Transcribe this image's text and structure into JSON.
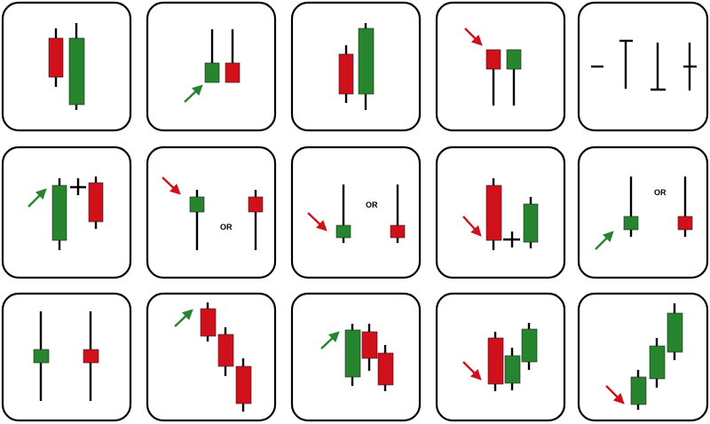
{
  "colors": {
    "bearish": "#d0101b",
    "bullish": "#27842f",
    "arrow_green": "#27842f",
    "arrow_red": "#d0101b",
    "frame": "#000000",
    "background": "#ffffff"
  },
  "labels": {
    "or": "OR"
  },
  "panels": [
    {
      "id": 1,
      "pattern": "engulfing"
    },
    {
      "id": 2,
      "pattern": "gap-candles-with-up-arrow"
    },
    {
      "id": 3,
      "pattern": "two-bars-rising"
    },
    {
      "id": 4,
      "pattern": "gap-candles-with-down-arrow"
    },
    {
      "id": 5,
      "pattern": "doji-types"
    },
    {
      "id": 6,
      "pattern": "bullish-then-doji-then-bearish"
    },
    {
      "id": 7,
      "pattern": "hanging-man-or-variant"
    },
    {
      "id": 8,
      "pattern": "hammer-or-variant"
    },
    {
      "id": 9,
      "pattern": "bearish-doji-bullish"
    },
    {
      "id": 10,
      "pattern": "shooting-star-or-variant"
    },
    {
      "id": 11,
      "pattern": "spinning-tops"
    },
    {
      "id": 12,
      "pattern": "three-black-crows"
    },
    {
      "id": 13,
      "pattern": "three-falling-after-up"
    },
    {
      "id": 14,
      "pattern": "morning-star-like"
    },
    {
      "id": 15,
      "pattern": "three-white-soldiers"
    }
  ]
}
